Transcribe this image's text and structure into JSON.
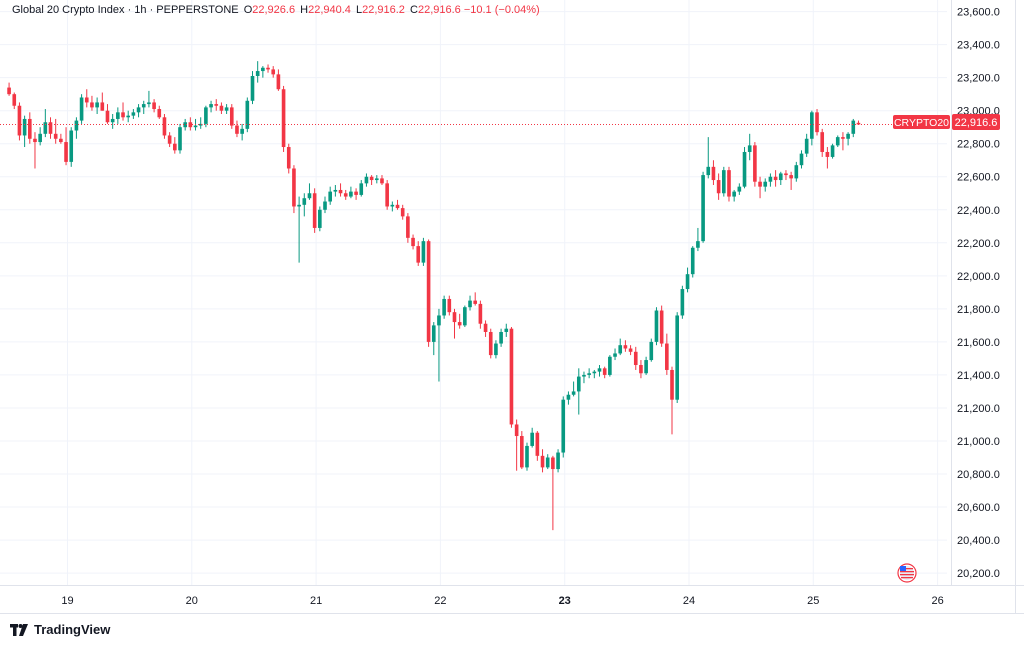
{
  "header": {
    "symbol": "Global 20 Crypto Index · 1h · PEPPERSTONE",
    "o_label": "O",
    "o_value": "22,926.6",
    "h_label": "H",
    "h_value": "22,940.4",
    "l_label": "L",
    "l_value": "22,916.2",
    "c_label": "C",
    "c_value": "22,916.6",
    "change": "−10.1 (−0.04%)"
  },
  "price_tag": {
    "symbol": "CRYPTO20",
    "value": "22,916.6",
    "price": 22916.6
  },
  "footer": {
    "brand": "TradingView"
  },
  "colors": {
    "up": "#089981",
    "down": "#f23645",
    "grid": "#f0f3fa",
    "text": "#131722"
  },
  "chart_data": {
    "type": "candlestick",
    "title": "Global 20 Crypto Index · 1h · PEPPERSTONE",
    "ylim": [
      20140,
      23640
    ],
    "y_ticks": [
      23600,
      23400,
      23200,
      23000,
      22800,
      22600,
      22400,
      22200,
      22000,
      21800,
      21600,
      21400,
      21200,
      21000,
      20800,
      20600,
      20400,
      20200
    ],
    "y_tick_labels": [
      "23,600.0",
      "23,400.0",
      "23,200.0",
      "23,000.0",
      "22,800.0",
      "22,600.0",
      "22,400.0",
      "22,200.0",
      "22,000.0",
      "21,800.0",
      "21,600.0",
      "21,400.0",
      "21,200.0",
      "21,000.0",
      "20,800.0",
      "20,600.0",
      "20,400.0",
      "20,200.0"
    ],
    "x_labels": [
      {
        "day": 19,
        "label": "19",
        "bold": false
      },
      {
        "day": 20,
        "label": "20",
        "bold": false
      },
      {
        "day": 21,
        "label": "21",
        "bold": false
      },
      {
        "day": 22,
        "label": "22",
        "bold": false
      },
      {
        "day": 23,
        "label": "23",
        "bold": true
      },
      {
        "day": 24,
        "label": "24",
        "bold": false
      },
      {
        "day": 25,
        "label": "25",
        "bold": false
      },
      {
        "day": 26,
        "label": "26",
        "bold": false
      }
    ],
    "x_start_day": 18.53,
    "bar_hours": 1,
    "candles": [
      [
        23140,
        23170,
        23090,
        23100
      ],
      [
        23100,
        23110,
        23010,
        23030
      ],
      [
        23030,
        23050,
        22820,
        22850
      ],
      [
        22850,
        22970,
        22780,
        22950
      ],
      [
        22950,
        22990,
        22800,
        22830
      ],
      [
        22830,
        22870,
        22650,
        22810
      ],
      [
        22810,
        22900,
        22790,
        22860
      ],
      [
        22860,
        23010,
        22840,
        22930
      ],
      [
        22930,
        22960,
        22830,
        22860
      ],
      [
        22860,
        22950,
        22800,
        22830
      ],
      [
        22830,
        22860,
        22800,
        22810
      ],
      [
        22810,
        22900,
        22670,
        22690
      ],
      [
        22690,
        22900,
        22660,
        22880
      ],
      [
        22880,
        22960,
        22830,
        22940
      ],
      [
        22940,
        23100,
        22920,
        23080
      ],
      [
        23080,
        23130,
        23020,
        23050
      ],
      [
        23050,
        23090,
        23000,
        23020
      ],
      [
        23020,
        23080,
        22980,
        23050
      ],
      [
        23050,
        23110,
        23000,
        23000
      ],
      [
        23000,
        23040,
        22920,
        22930
      ],
      [
        22930,
        22980,
        22890,
        22950
      ],
      [
        22950,
        23020,
        22920,
        22990
      ],
      [
        22990,
        23050,
        22940,
        22960
      ],
      [
        22960,
        23000,
        22930,
        22970
      ],
      [
        22970,
        23010,
        22950,
        22990
      ],
      [
        22990,
        23040,
        22960,
        23020
      ],
      [
        23020,
        23060,
        22980,
        23040
      ],
      [
        23040,
        23120,
        23020,
        23050
      ],
      [
        23050,
        23070,
        22990,
        23010
      ],
      [
        23010,
        23030,
        22950,
        22960
      ],
      [
        22960,
        22980,
        22830,
        22850
      ],
      [
        22850,
        22870,
        22780,
        22800
      ],
      [
        22800,
        22840,
        22740,
        22760
      ],
      [
        22760,
        22920,
        22740,
        22900
      ],
      [
        22900,
        22950,
        22880,
        22930
      ],
      [
        22930,
        22960,
        22880,
        22900
      ],
      [
        22900,
        22950,
        22880,
        22910
      ],
      [
        22910,
        22960,
        22890,
        22920
      ],
      [
        22920,
        23030,
        22900,
        23020
      ],
      [
        23020,
        23060,
        22990,
        23040
      ],
      [
        23040,
        23070,
        23000,
        23030
      ],
      [
        23030,
        23050,
        22980,
        23000
      ],
      [
        23000,
        23040,
        22980,
        23020
      ],
      [
        23020,
        23040,
        22890,
        22910
      ],
      [
        22910,
        22940,
        22840,
        22860
      ],
      [
        22860,
        22920,
        22820,
        22890
      ],
      [
        22890,
        23080,
        22870,
        23060
      ],
      [
        23060,
        23240,
        23040,
        23210
      ],
      [
        23210,
        23300,
        23170,
        23240
      ],
      [
        23240,
        23270,
        23200,
        23260
      ],
      [
        23260,
        23280,
        23230,
        23250
      ],
      [
        23250,
        23270,
        23200,
        23220
      ],
      [
        23220,
        23250,
        23120,
        23130
      ],
      [
        23130,
        23150,
        22750,
        22780
      ],
      [
        22780,
        22800,
        22620,
        22650
      ],
      [
        22650,
        22670,
        22380,
        22420
      ],
      [
        22420,
        22480,
        22080,
        22430
      ],
      [
        22430,
        22500,
        22360,
        22470
      ],
      [
        22470,
        22560,
        22460,
        22500
      ],
      [
        22500,
        22530,
        22260,
        22290
      ],
      [
        22290,
        22420,
        22270,
        22400
      ],
      [
        22400,
        22480,
        22380,
        22450
      ],
      [
        22450,
        22540,
        22430,
        22510
      ],
      [
        22510,
        22550,
        22480,
        22520
      ],
      [
        22520,
        22560,
        22480,
        22500
      ],
      [
        22500,
        22520,
        22460,
        22480
      ],
      [
        22480,
        22540,
        22470,
        22510
      ],
      [
        22510,
        22530,
        22460,
        22490
      ],
      [
        22490,
        22580,
        22480,
        22560
      ],
      [
        22560,
        22620,
        22540,
        22600
      ],
      [
        22600,
        22610,
        22550,
        22580
      ],
      [
        22580,
        22610,
        22560,
        22590
      ],
      [
        22590,
        22610,
        22550,
        22560
      ],
      [
        22560,
        22580,
        22400,
        22420
      ],
      [
        22420,
        22450,
        22390,
        22430
      ],
      [
        22430,
        22460,
        22400,
        22410
      ],
      [
        22410,
        22430,
        22340,
        22360
      ],
      [
        22360,
        22380,
        22200,
        22230
      ],
      [
        22230,
        22250,
        22160,
        22180
      ],
      [
        22180,
        22210,
        22060,
        22080
      ],
      [
        22080,
        22230,
        22060,
        22210
      ],
      [
        22210,
        22220,
        21570,
        21600
      ],
      [
        21600,
        21720,
        21520,
        21700
      ],
      [
        21700,
        21800,
        21360,
        21760
      ],
      [
        21760,
        21880,
        21740,
        21860
      ],
      [
        21860,
        21880,
        21760,
        21780
      ],
      [
        21780,
        21800,
        21620,
        21720
      ],
      [
        21720,
        21770,
        21680,
        21700
      ],
      [
        21700,
        21820,
        21690,
        21810
      ],
      [
        21810,
        21880,
        21790,
        21850
      ],
      [
        21850,
        21900,
        21820,
        21830
      ],
      [
        21830,
        21850,
        21680,
        21710
      ],
      [
        21710,
        21730,
        21630,
        21660
      ],
      [
        21660,
        21680,
        21500,
        21520
      ],
      [
        21520,
        21610,
        21500,
        21590
      ],
      [
        21590,
        21680,
        21570,
        21660
      ],
      [
        21660,
        21710,
        21630,
        21680
      ],
      [
        21680,
        21690,
        21080,
        21100
      ],
      [
        21100,
        21130,
        20820,
        21030
      ],
      [
        21030,
        21060,
        20830,
        20840
      ],
      [
        20840,
        20990,
        20820,
        20970
      ],
      [
        20970,
        21080,
        20960,
        21050
      ],
      [
        21050,
        21060,
        20880,
        20910
      ],
      [
        20910,
        20950,
        20810,
        20840
      ],
      [
        20840,
        20920,
        20830,
        20900
      ],
      [
        20900,
        20910,
        20460,
        20830
      ],
      [
        20830,
        20950,
        20810,
        20930
      ],
      [
        20930,
        21270,
        20900,
        21250
      ],
      [
        21250,
        21300,
        21220,
        21280
      ],
      [
        21280,
        21360,
        21270,
        21300
      ],
      [
        21300,
        21440,
        21160,
        21390
      ],
      [
        21390,
        21420,
        21350,
        21400
      ],
      [
        21400,
        21440,
        21380,
        21410
      ],
      [
        21410,
        21430,
        21380,
        21420
      ],
      [
        21420,
        21460,
        21390,
        21440
      ],
      [
        21440,
        21450,
        21380,
        21400
      ],
      [
        21400,
        21520,
        21390,
        21510
      ],
      [
        21510,
        21560,
        21490,
        21530
      ],
      [
        21530,
        21620,
        21520,
        21580
      ],
      [
        21580,
        21610,
        21540,
        21560
      ],
      [
        21560,
        21580,
        21520,
        21540
      ],
      [
        21540,
        21570,
        21430,
        21460
      ],
      [
        21460,
        21490,
        21380,
        21410
      ],
      [
        21410,
        21510,
        21400,
        21490
      ],
      [
        21490,
        21620,
        21480,
        21600
      ],
      [
        21600,
        21810,
        21580,
        21790
      ],
      [
        21790,
        21820,
        21570,
        21590
      ],
      [
        21590,
        21650,
        21400,
        21430
      ],
      [
        21430,
        21450,
        21040,
        21250
      ],
      [
        21250,
        21780,
        21230,
        21760
      ],
      [
        21760,
        21940,
        21740,
        21920
      ],
      [
        21920,
        22050,
        21900,
        22010
      ],
      [
        22010,
        22180,
        21990,
        22170
      ],
      [
        22170,
        22290,
        22150,
        22210
      ],
      [
        22210,
        22630,
        22200,
        22610
      ],
      [
        22610,
        22840,
        22590,
        22660
      ],
      [
        22660,
        22700,
        22550,
        22580
      ],
      [
        22580,
        22620,
        22460,
        22500
      ],
      [
        22500,
        22660,
        22480,
        22640
      ],
      [
        22640,
        22660,
        22450,
        22480
      ],
      [
        22480,
        22520,
        22450,
        22510
      ],
      [
        22510,
        22560,
        22490,
        22540
      ],
      [
        22540,
        22780,
        22530,
        22750
      ],
      [
        22750,
        22860,
        22700,
        22790
      ],
      [
        22790,
        22810,
        22540,
        22570
      ],
      [
        22570,
        22600,
        22470,
        22540
      ],
      [
        22540,
        22590,
        22510,
        22570
      ],
      [
        22570,
        22620,
        22540,
        22600
      ],
      [
        22600,
        22640,
        22540,
        22580
      ],
      [
        22580,
        22630,
        22550,
        22620
      ],
      [
        22620,
        22640,
        22580,
        22610
      ],
      [
        22610,
        22630,
        22520,
        22590
      ],
      [
        22590,
        22690,
        22570,
        22670
      ],
      [
        22670,
        22760,
        22650,
        22740
      ],
      [
        22740,
        22860,
        22720,
        22830
      ],
      [
        22830,
        23000,
        22790,
        22990
      ],
      [
        22990,
        23010,
        22850,
        22870
      ],
      [
        22870,
        22890,
        22720,
        22750
      ],
      [
        22750,
        22780,
        22650,
        22720
      ],
      [
        22720,
        22800,
        22710,
        22790
      ],
      [
        22790,
        22850,
        22780,
        22840
      ],
      [
        22840,
        22870,
        22760,
        22830
      ],
      [
        22830,
        22870,
        22790,
        22860
      ],
      [
        22860,
        22950,
        22840,
        22940
      ],
      [
        22926.6,
        22940.4,
        22916.2,
        22916.6
      ]
    ]
  }
}
